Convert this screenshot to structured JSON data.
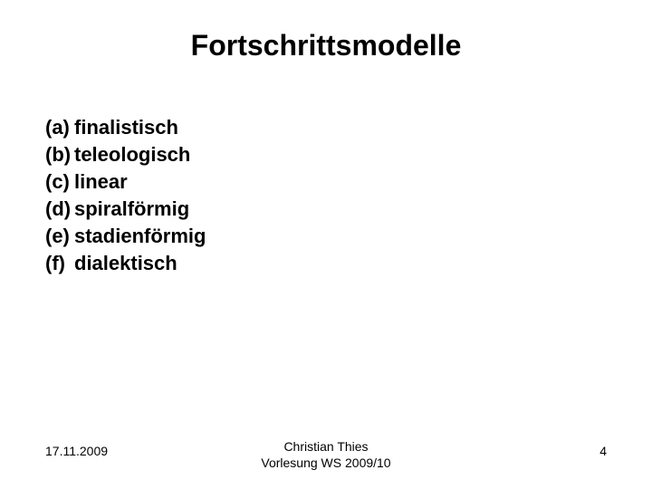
{
  "title": {
    "text": "Fortschrittsmodelle",
    "fontsize": 32,
    "fontweight": "bold"
  },
  "list": {
    "fontsize": 22,
    "fontweight": "bold",
    "items": [
      {
        "marker": "(a)",
        "label": "finalistisch"
      },
      {
        "marker": "(b)",
        "label": "teleologisch"
      },
      {
        "marker": "(c)",
        "label": "linear"
      },
      {
        "marker": "(d)",
        "label": "spiralförmig"
      },
      {
        "marker": "(e)",
        "label": "stadienförmig"
      },
      {
        "marker": "(f)",
        "label": "dialektisch"
      }
    ]
  },
  "footer": {
    "fontsize": 14,
    "date": "17.11.2009",
    "center_line1": "Christian Thies",
    "center_line2": "Vorlesung WS 2009/10",
    "page": "4"
  },
  "colors": {
    "background": "#ffffff",
    "text": "#000000"
  }
}
